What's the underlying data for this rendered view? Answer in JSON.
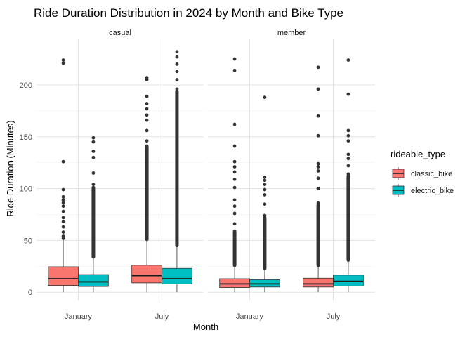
{
  "chart_data": {
    "type": "boxplot",
    "title": "Ride Duration Distribution in 2024 by Month and Bike Type",
    "xlabel": "Month",
    "ylabel": "Ride Duration (Minutes)",
    "ylim": [
      -8,
      244
    ],
    "y_ticks": [
      0,
      50,
      100,
      150,
      200
    ],
    "grid": true,
    "facets": [
      "casual",
      "member"
    ],
    "categories": [
      "January",
      "July"
    ],
    "legend": {
      "title": "rideable_type",
      "placement": "right",
      "entries": [
        {
          "name": "classic_bike",
          "color": "#F8766D"
        },
        {
          "name": "electric_bike",
          "color": "#00BFC4"
        }
      ]
    },
    "boxes": [
      {
        "facet": "casual",
        "month": "January",
        "type": "classic_bike",
        "min": 0,
        "q1": 6.5,
        "median": 13,
        "q3": 24.5,
        "max": 51,
        "outliers": [
          52,
          54,
          58,
          63,
          68,
          72,
          78,
          83,
          86,
          88,
          89,
          92,
          99,
          126,
          221,
          224
        ],
        "dense_range": null
      },
      {
        "facet": "casual",
        "month": "January",
        "type": "electric_bike",
        "min": 0,
        "q1": 5.5,
        "median": 10,
        "q3": 17,
        "max": 33,
        "outliers": [
          101,
          104,
          115,
          130,
          136,
          145,
          149
        ],
        "dense_range": [
          34,
          100
        ]
      },
      {
        "facet": "casual",
        "month": "July",
        "type": "classic_bike",
        "min": 0,
        "q1": 9,
        "median": 16,
        "q3": 26,
        "max": 50,
        "outliers": [
          141,
          146,
          156,
          166,
          171,
          177,
          182,
          189,
          205,
          207
        ],
        "dense_range": [
          51,
          140
        ]
      },
      {
        "facet": "casual",
        "month": "July",
        "type": "electric_bike",
        "min": 0,
        "q1": 8,
        "median": 13,
        "q3": 23,
        "max": 44,
        "outliers": [
          196,
          205,
          213,
          220,
          227,
          232
        ],
        "dense_range": [
          45,
          194
        ]
      },
      {
        "facet": "member",
        "month": "January",
        "type": "classic_bike",
        "min": 0,
        "q1": 4.5,
        "median": 8,
        "q3": 13,
        "max": 25,
        "outliers": [
          59,
          66,
          76,
          83,
          89,
          101,
          109,
          116,
          121,
          126,
          141,
          162,
          214,
          225
        ],
        "dense_range": [
          26,
          58
        ]
      },
      {
        "facet": "member",
        "month": "January",
        "type": "electric_bike",
        "min": 0,
        "q1": 5,
        "median": 8,
        "q3": 12,
        "max": 22,
        "outliers": [
          74,
          85,
          94,
          99,
          104,
          108,
          111,
          188
        ],
        "dense_range": [
          23,
          72
        ]
      },
      {
        "facet": "member",
        "month": "July",
        "type": "classic_bike",
        "min": 0,
        "q1": 5,
        "median": 8,
        "q3": 13.5,
        "max": 25,
        "outliers": [
          86,
          100,
          110,
          117,
          121,
          124,
          151,
          170,
          196,
          217
        ],
        "dense_range": [
          26,
          84
        ]
      },
      {
        "facet": "member",
        "month": "July",
        "type": "electric_bike",
        "min": 0,
        "q1": 6,
        "median": 10.5,
        "q3": 16.5,
        "max": 30,
        "outliers": [
          114,
          122,
          129,
          133,
          146,
          151,
          156,
          191,
          224
        ],
        "dense_range": [
          31,
          112
        ]
      }
    ]
  }
}
